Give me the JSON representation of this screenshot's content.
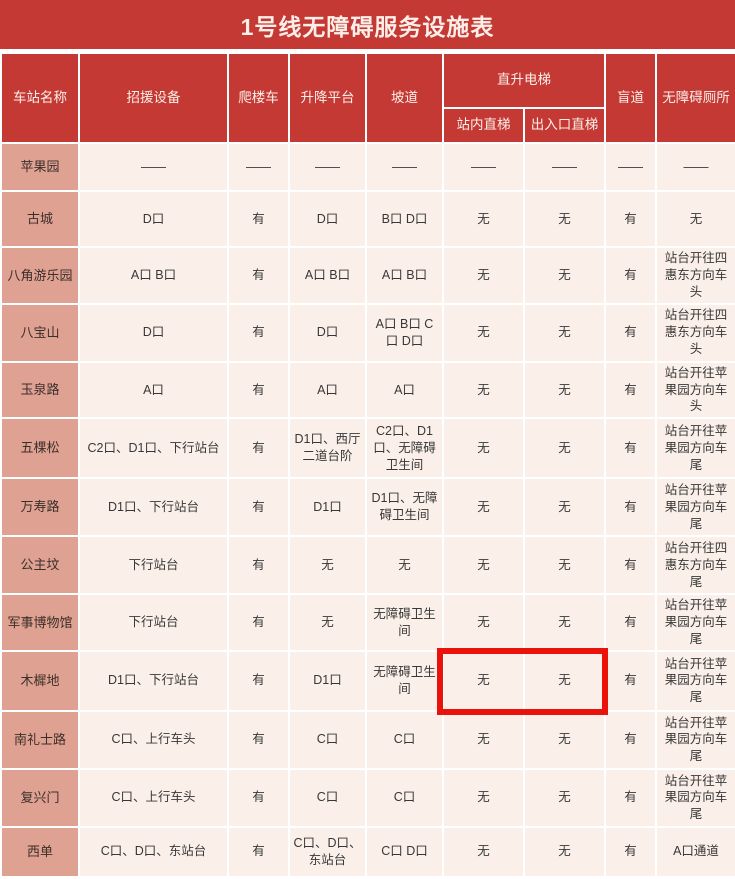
{
  "title": "1号线无障碍服务设施表",
  "colors": {
    "header_red": "#c43934",
    "station_column_bg": "#dfa191",
    "data_cell_bg": "#fbf0e9",
    "grid_line": "#ffffff",
    "highlight_red": "#e9130b"
  },
  "header": {
    "station": "车站名称",
    "pre_columns": [
      "招援设备",
      "爬楼车",
      "升降平台",
      "坡道"
    ],
    "elevator_group": {
      "label": "直升电梯",
      "children": [
        "站内直梯",
        "出入口直梯"
      ]
    },
    "post_columns": [
      "盲道",
      "无障碍厕所"
    ]
  },
  "rows": [
    {
      "station": "苹果园",
      "cells": [
        "——",
        "——",
        "——",
        "——",
        "——",
        "——",
        "——",
        "——"
      ]
    },
    {
      "station": "古城",
      "cells": [
        "D口",
        "有",
        "D口",
        "B口 D口",
        "无",
        "无",
        "有",
        "无"
      ]
    },
    {
      "station": "八角游乐园",
      "cells": [
        "A口 B口",
        "有",
        "A口 B口",
        "A口 B口",
        "无",
        "无",
        "有",
        "站台开往四惠东方向车头"
      ]
    },
    {
      "station": "八宝山",
      "cells": [
        "D口",
        "有",
        "D口",
        "A口 B口 C口 D口",
        "无",
        "无",
        "有",
        "站台开往四惠东方向车头"
      ]
    },
    {
      "station": "玉泉路",
      "cells": [
        "A口",
        "有",
        "A口",
        "A口",
        "无",
        "无",
        "有",
        "站台开往苹果园方向车头"
      ]
    },
    {
      "station": "五棵松",
      "cells": [
        "C2口、D1口、下行站台",
        "有",
        "D1口、西厅二道台阶",
        "C2口、D1口、无障碍卫生间",
        "无",
        "无",
        "有",
        "站台开往苹果园方向车尾"
      ]
    },
    {
      "station": "万寿路",
      "cells": [
        "D1口、下行站台",
        "有",
        "D1口",
        "D1口、无障碍卫生间",
        "无",
        "无",
        "有",
        "站台开往苹果园方向车尾"
      ]
    },
    {
      "station": "公主坟",
      "cells": [
        "下行站台",
        "有",
        "无",
        "无",
        "无",
        "无",
        "有",
        "站台开往四惠东方向车尾"
      ]
    },
    {
      "station": "军事博物馆",
      "cells": [
        "下行站台",
        "有",
        "无",
        "无障碍卫生间",
        "无",
        "无",
        "有",
        "站台开往苹果园方向车尾"
      ]
    },
    {
      "station": "木樨地",
      "cells": [
        "D1口、下行站台",
        "有",
        "D1口",
        "无障碍卫生间",
        "无",
        "无",
        "有",
        "站台开往苹果园方向车尾"
      ],
      "highlighted": true
    },
    {
      "station": "南礼士路",
      "cells": [
        "C口、上行车头",
        "有",
        "C口",
        "C口",
        "无",
        "无",
        "有",
        "站台开往苹果园方向车尾"
      ]
    },
    {
      "station": "复兴门",
      "cells": [
        "C口、上行车头",
        "有",
        "C口",
        "C口",
        "无",
        "无",
        "有",
        "站台开往苹果园方向车尾"
      ]
    },
    {
      "station": "西单",
      "cells": [
        "C口、D口、东站台",
        "有",
        "C口、D口、东站台",
        "C口 D口",
        "无",
        "无",
        "有",
        "A口通道"
      ]
    }
  ],
  "highlight": {
    "station": "木樨地",
    "columns": [
      "站内直梯",
      "出入口直梯"
    ],
    "values": [
      "无",
      "无"
    ]
  }
}
